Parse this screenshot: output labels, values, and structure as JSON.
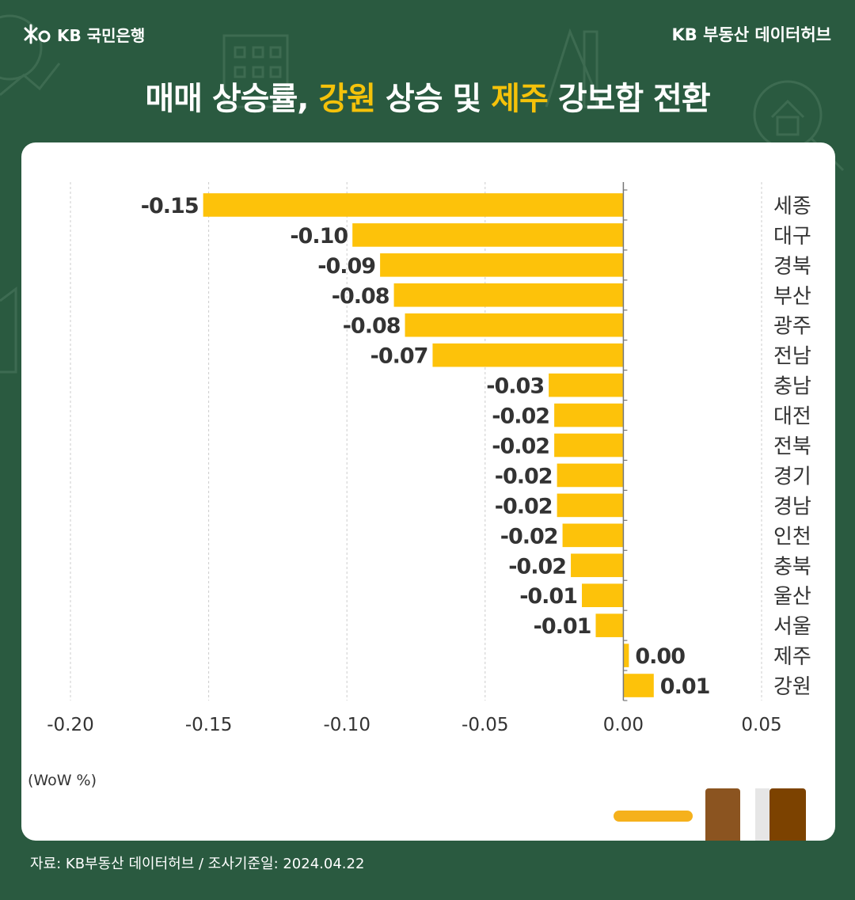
{
  "header": {
    "logo_text": "KB 국민은행",
    "brand": "KB 부동산  데이터허브"
  },
  "title": {
    "part1": "매매 상승률, ",
    "highlight1": "강원",
    "part2": " 상승 및 ",
    "highlight2": "제주",
    "part3": " 강보합 전환",
    "highlight_color": "#f5c20a"
  },
  "chart_data": {
    "type": "bar",
    "orientation": "horizontal",
    "categories": [
      "세종",
      "대구",
      "경북",
      "부산",
      "광주",
      "전남",
      "충남",
      "대전",
      "전북",
      "경기",
      "경남",
      "인천",
      "충북",
      "울산",
      "서울",
      "제주",
      "강원"
    ],
    "values": [
      -0.152,
      -0.098,
      -0.088,
      -0.083,
      -0.079,
      -0.069,
      -0.027,
      -0.025,
      -0.025,
      -0.024,
      -0.024,
      -0.022,
      -0.019,
      -0.015,
      -0.01,
      0.002,
      0.011
    ],
    "data_labels": [
      "-0.15",
      "-0.10",
      "-0.09",
      "-0.08",
      "-0.08",
      "-0.07",
      "-0.03",
      "-0.02",
      "-0.02",
      "-0.02",
      "-0.02",
      "-0.02",
      "-0.02",
      "-0.01",
      "-0.01",
      "0.00",
      "0.01"
    ],
    "x_ticks": [
      -0.2,
      -0.15,
      -0.1,
      -0.05,
      0.0,
      0.05
    ],
    "x_tick_labels": [
      "-0.20",
      "-0.15",
      "-0.10",
      "-0.05",
      "0.00",
      "0.05"
    ],
    "xlim": [
      -0.2,
      0.05
    ],
    "unit_label": "(WoW %)",
    "bar_color": "#fdc20a",
    "grid": "vertical dashed",
    "category_axis": "right"
  },
  "footer": {
    "source": "자료: KB부동산 데이터허브 / 조사기준일: 2024.04.22"
  }
}
